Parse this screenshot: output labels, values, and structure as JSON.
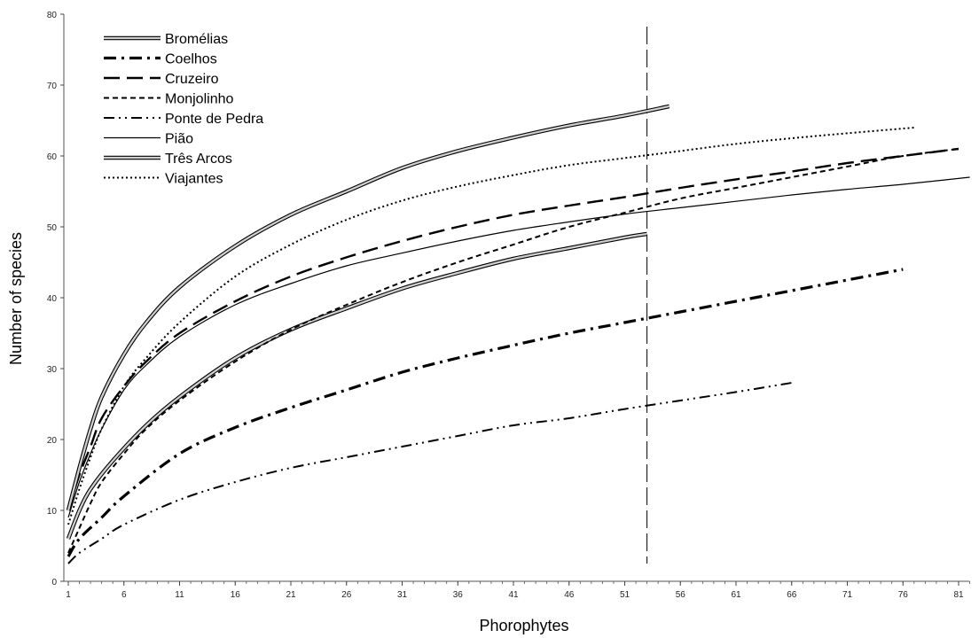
{
  "chart_data": {
    "type": "line",
    "title": "",
    "xlabel": "Phorophytes",
    "ylabel": "Number of species",
    "xlim": [
      1,
      82
    ],
    "ylim": [
      0,
      80
    ],
    "x_ticks": [
      1,
      6,
      11,
      16,
      21,
      26,
      31,
      36,
      41,
      46,
      51,
      56,
      61,
      66,
      71,
      76,
      81
    ],
    "y_ticks": [
      0,
      10,
      20,
      30,
      40,
      50,
      60,
      70,
      80
    ],
    "legend_position": "top-left",
    "grid": false,
    "reference_line": {
      "x": 53,
      "style": "long-dash"
    },
    "series": [
      {
        "name": "Bromélias",
        "style": "double",
        "points": [
          [
            1,
            6
          ],
          [
            2,
            10
          ],
          [
            3,
            13
          ],
          [
            5,
            17
          ],
          [
            8,
            22
          ],
          [
            11,
            26
          ],
          [
            16,
            31.5
          ],
          [
            21,
            35.5
          ],
          [
            26,
            38.5
          ],
          [
            31,
            41.3
          ],
          [
            36,
            43.5
          ],
          [
            41,
            45.5
          ],
          [
            46,
            47
          ],
          [
            51,
            48.5
          ],
          [
            53,
            49
          ]
        ]
      },
      {
        "name": "Coelhos",
        "style": "dash-dot-heavy",
        "points": [
          [
            1,
            3.5
          ],
          [
            2,
            6
          ],
          [
            4,
            9
          ],
          [
            6,
            12
          ],
          [
            11,
            18
          ],
          [
            16,
            21.7
          ],
          [
            21,
            24.5
          ],
          [
            26,
            27
          ],
          [
            31,
            29.5
          ],
          [
            36,
            31.5
          ],
          [
            41,
            33.3
          ],
          [
            46,
            35
          ],
          [
            51,
            36.5
          ],
          [
            56,
            38
          ],
          [
            61,
            39.5
          ],
          [
            66,
            41
          ],
          [
            71,
            42.5
          ],
          [
            76,
            44
          ]
        ]
      },
      {
        "name": "Cruzeiro",
        "style": "long-dash",
        "points": [
          [
            1,
            10
          ],
          [
            2,
            15
          ],
          [
            3,
            19
          ],
          [
            4,
            23
          ],
          [
            6,
            27.5
          ],
          [
            8,
            31
          ],
          [
            11,
            35
          ],
          [
            16,
            39.5
          ],
          [
            21,
            43
          ],
          [
            26,
            45.7
          ],
          [
            31,
            48
          ],
          [
            36,
            50
          ],
          [
            41,
            51.7
          ],
          [
            46,
            53
          ],
          [
            51,
            54.2
          ],
          [
            56,
            55.5
          ],
          [
            61,
            56.7
          ],
          [
            66,
            57.8
          ],
          [
            71,
            59
          ],
          [
            76,
            60
          ],
          [
            81,
            61
          ]
        ]
      },
      {
        "name": "Monjolinho",
        "style": "short-dash",
        "points": [
          [
            1,
            4
          ],
          [
            2,
            7.5
          ],
          [
            3,
            11
          ],
          [
            4,
            14
          ],
          [
            6,
            18
          ],
          [
            8,
            21.5
          ],
          [
            11,
            25.5
          ],
          [
            16,
            31
          ],
          [
            21,
            35.5
          ],
          [
            26,
            39
          ],
          [
            31,
            42.2
          ],
          [
            36,
            45
          ],
          [
            41,
            47.5
          ],
          [
            46,
            50
          ],
          [
            51,
            52
          ],
          [
            56,
            54
          ],
          [
            61,
            55.5
          ],
          [
            66,
            57
          ],
          [
            71,
            58.5
          ],
          [
            76,
            60
          ],
          [
            81,
            61
          ]
        ]
      },
      {
        "name": "Ponte de Pedra",
        "style": "dash-dot-dot",
        "points": [
          [
            1,
            2.5
          ],
          [
            2,
            4
          ],
          [
            4,
            6
          ],
          [
            6,
            8
          ],
          [
            11,
            11.5
          ],
          [
            16,
            14
          ],
          [
            21,
            16
          ],
          [
            26,
            17.5
          ],
          [
            31,
            19
          ],
          [
            36,
            20.5
          ],
          [
            41,
            22
          ],
          [
            46,
            23
          ],
          [
            51,
            24.3
          ],
          [
            56,
            25.5
          ],
          [
            61,
            26.7
          ],
          [
            66,
            28
          ]
        ]
      },
      {
        "name": "Pião",
        "style": "thin-solid",
        "points": [
          [
            1,
            9
          ],
          [
            2,
            14
          ],
          [
            3,
            18
          ],
          [
            4,
            21.5
          ],
          [
            6,
            27
          ],
          [
            8,
            30.5
          ],
          [
            11,
            34.5
          ],
          [
            16,
            39
          ],
          [
            21,
            42
          ],
          [
            26,
            44.5
          ],
          [
            31,
            46.3
          ],
          [
            36,
            48
          ],
          [
            41,
            49.5
          ],
          [
            46,
            50.7
          ],
          [
            51,
            51.8
          ],
          [
            56,
            52.7
          ],
          [
            61,
            53.6
          ],
          [
            66,
            54.5
          ],
          [
            71,
            55.3
          ],
          [
            76,
            56
          ],
          [
            82,
            57
          ]
        ]
      },
      {
        "name": "Três Arcos",
        "style": "double",
        "points": [
          [
            1,
            10
          ],
          [
            2,
            16
          ],
          [
            3,
            21.5
          ],
          [
            4,
            26
          ],
          [
            6,
            32
          ],
          [
            8,
            36.5
          ],
          [
            11,
            41.5
          ],
          [
            16,
            47.3
          ],
          [
            21,
            51.7
          ],
          [
            26,
            55
          ],
          [
            31,
            58.3
          ],
          [
            36,
            60.7
          ],
          [
            41,
            62.6
          ],
          [
            46,
            64.3
          ],
          [
            51,
            65.7
          ],
          [
            55,
            67
          ]
        ]
      },
      {
        "name": "Viajantes",
        "style": "dotted",
        "points": [
          [
            1,
            8
          ],
          [
            2,
            13
          ],
          [
            3,
            17.5
          ],
          [
            4,
            21.5
          ],
          [
            6,
            27.5
          ],
          [
            8,
            31.5
          ],
          [
            11,
            36.5
          ],
          [
            16,
            43
          ],
          [
            21,
            47.5
          ],
          [
            26,
            51
          ],
          [
            31,
            53.7
          ],
          [
            36,
            55.7
          ],
          [
            41,
            57.3
          ],
          [
            46,
            58.7
          ],
          [
            51,
            59.7
          ],
          [
            56,
            60.7
          ],
          [
            61,
            61.7
          ],
          [
            66,
            62.5
          ],
          [
            71,
            63.2
          ],
          [
            77,
            64
          ]
        ]
      }
    ]
  }
}
